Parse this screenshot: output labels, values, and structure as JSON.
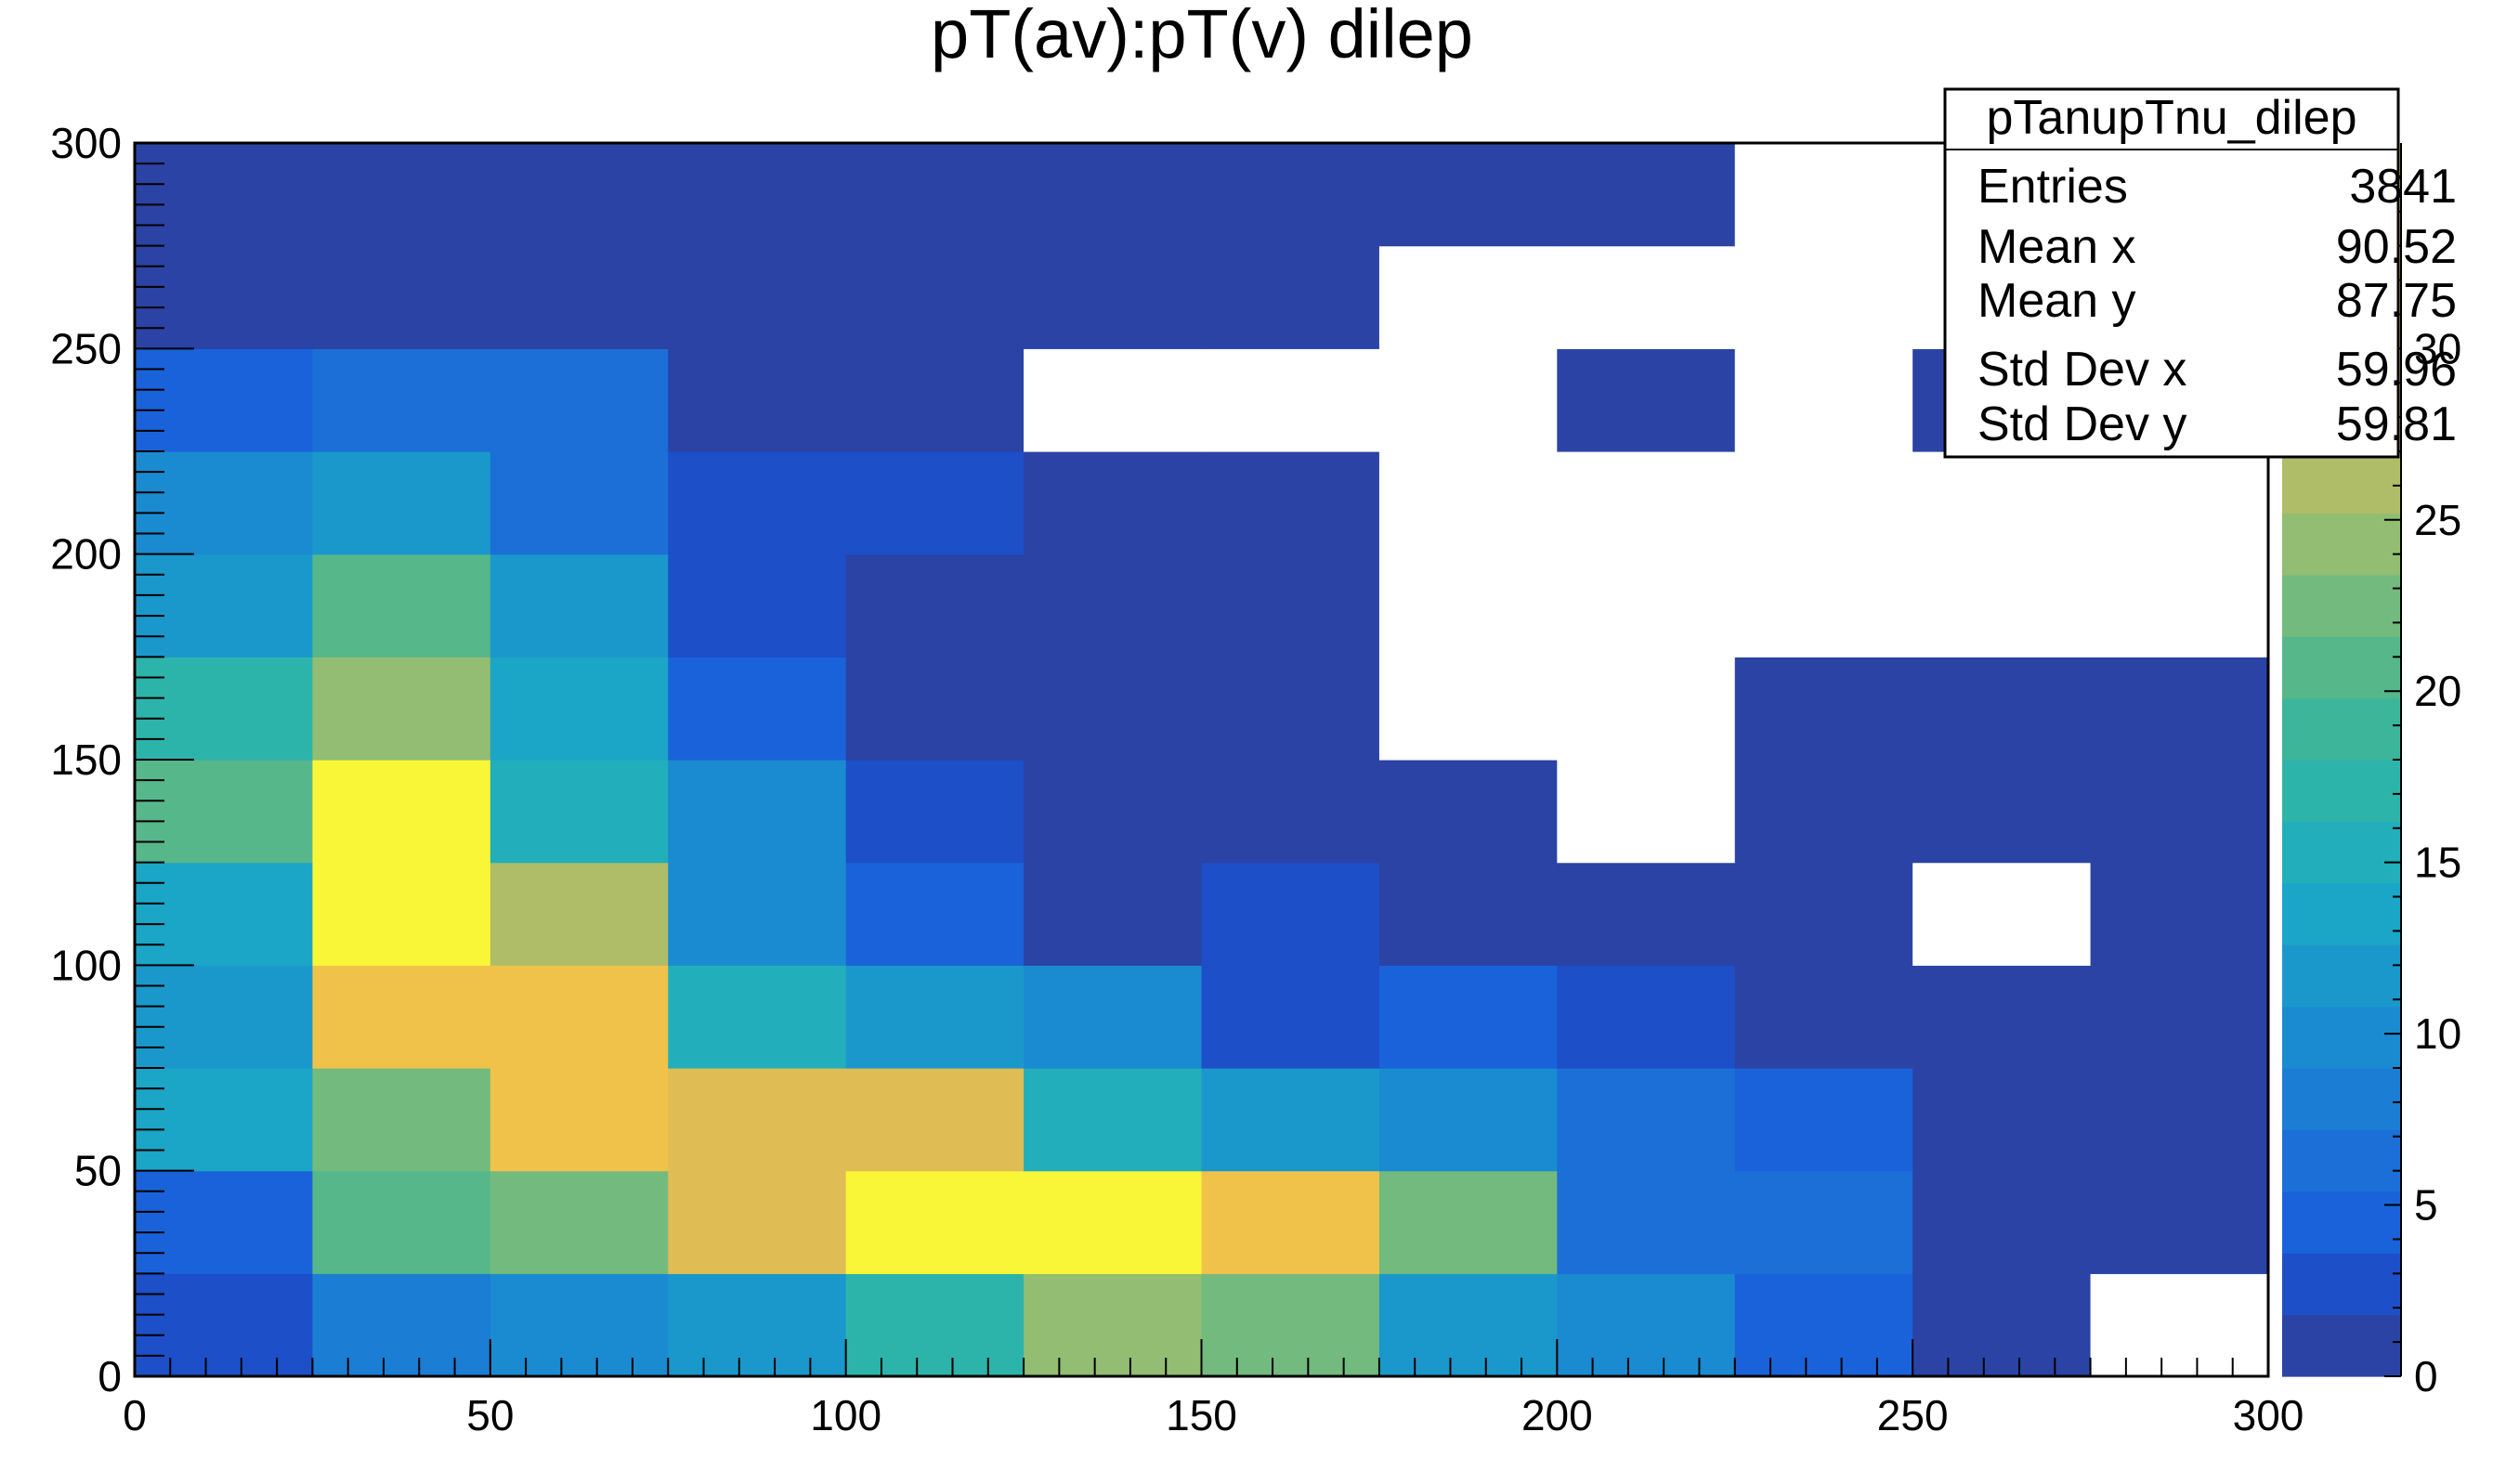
{
  "chart_data": {
    "type": "heatmap",
    "title": "pT(av):pT(v) dilep",
    "xlabel": "",
    "ylabel": "",
    "xlim": [
      0,
      300
    ],
    "ylim": [
      0,
      300
    ],
    "x_ticks": [
      "0",
      "50",
      "100",
      "150",
      "200",
      "250",
      "300"
    ],
    "y_ticks": [
      "0",
      "50",
      "100",
      "150",
      "200",
      "250",
      "300"
    ],
    "x_bin_edges": [
      0,
      25,
      50,
      75,
      100,
      125,
      150,
      175,
      200,
      225,
      250,
      275,
      300
    ],
    "y_bin_edges": [
      0,
      25,
      50,
      75,
      100,
      125,
      150,
      175,
      200,
      225,
      250,
      275,
      300
    ],
    "z_range": [
      0,
      36
    ],
    "z_ticks": [
      "0",
      "5",
      "10",
      "15",
      "20",
      "25",
      "30"
    ],
    "z_levels": 20,
    "palette": [
      "#2a43a4",
      "#1d4fc8",
      "#1a62da",
      "#1c6fd6",
      "#1b7dd4",
      "#1a8bd0",
      "#1a98cc",
      "#1ba5c6",
      "#22aeba",
      "#2cb4ab",
      "#3db59a",
      "#56b78b",
      "#73ba7e",
      "#92bd72",
      "#b0bd68",
      "#cbba5e",
      "#dfbc54",
      "#f1c24a",
      "#f6d83b",
      "#f8f636"
    ],
    "empty_color": "#ffffff",
    "values": [
      [
        2,
        8,
        10,
        12,
        17,
        24,
        22,
        12,
        9,
        4,
        1,
        0
      ],
      [
        5,
        20,
        22,
        29,
        36,
        36,
        31,
        23,
        6,
        7,
        1,
        1
      ],
      [
        13,
        22,
        31,
        29,
        30,
        16,
        11,
        9,
        6,
        4,
        1,
        1
      ],
      [
        12,
        31,
        32,
        15,
        12,
        10,
        3,
        5,
        3,
        1,
        1,
        1
      ],
      [
        14,
        36,
        26,
        10,
        4,
        1,
        3,
        1,
        1,
        1,
        0,
        1
      ],
      [
        21,
        35,
        15,
        9,
        3,
        1,
        1,
        1,
        0,
        1,
        1,
        1
      ],
      [
        17,
        25,
        13,
        5,
        1,
        1,
        1,
        0,
        0,
        1,
        1,
        1
      ],
      [
        11,
        20,
        11,
        3,
        1,
        1,
        1,
        0,
        0,
        0,
        0,
        0
      ],
      [
        10,
        11,
        6,
        3,
        3,
        1,
        1,
        0,
        0,
        0,
        0,
        0
      ],
      [
        4,
        6,
        6,
        1,
        1,
        0,
        0,
        0,
        1,
        0,
        1,
        0
      ],
      [
        1,
        1,
        1,
        1,
        1,
        1,
        1,
        0,
        0,
        0,
        0,
        0
      ],
      [
        1,
        1,
        1,
        1,
        1,
        1,
        1,
        1,
        1,
        0,
        0,
        0
      ]
    ],
    "stats_box": {
      "name": "pTanupTnu_dilep",
      "rows": [
        {
          "label": "Entries",
          "value": "3841"
        },
        {
          "label": "Mean x",
          "value": "90.52"
        },
        {
          "label": "Mean y",
          "value": "87.75"
        },
        {
          "label": "Std Dev x",
          "value": "59.96"
        },
        {
          "label": "Std Dev y",
          "value": "59.81"
        }
      ]
    }
  }
}
